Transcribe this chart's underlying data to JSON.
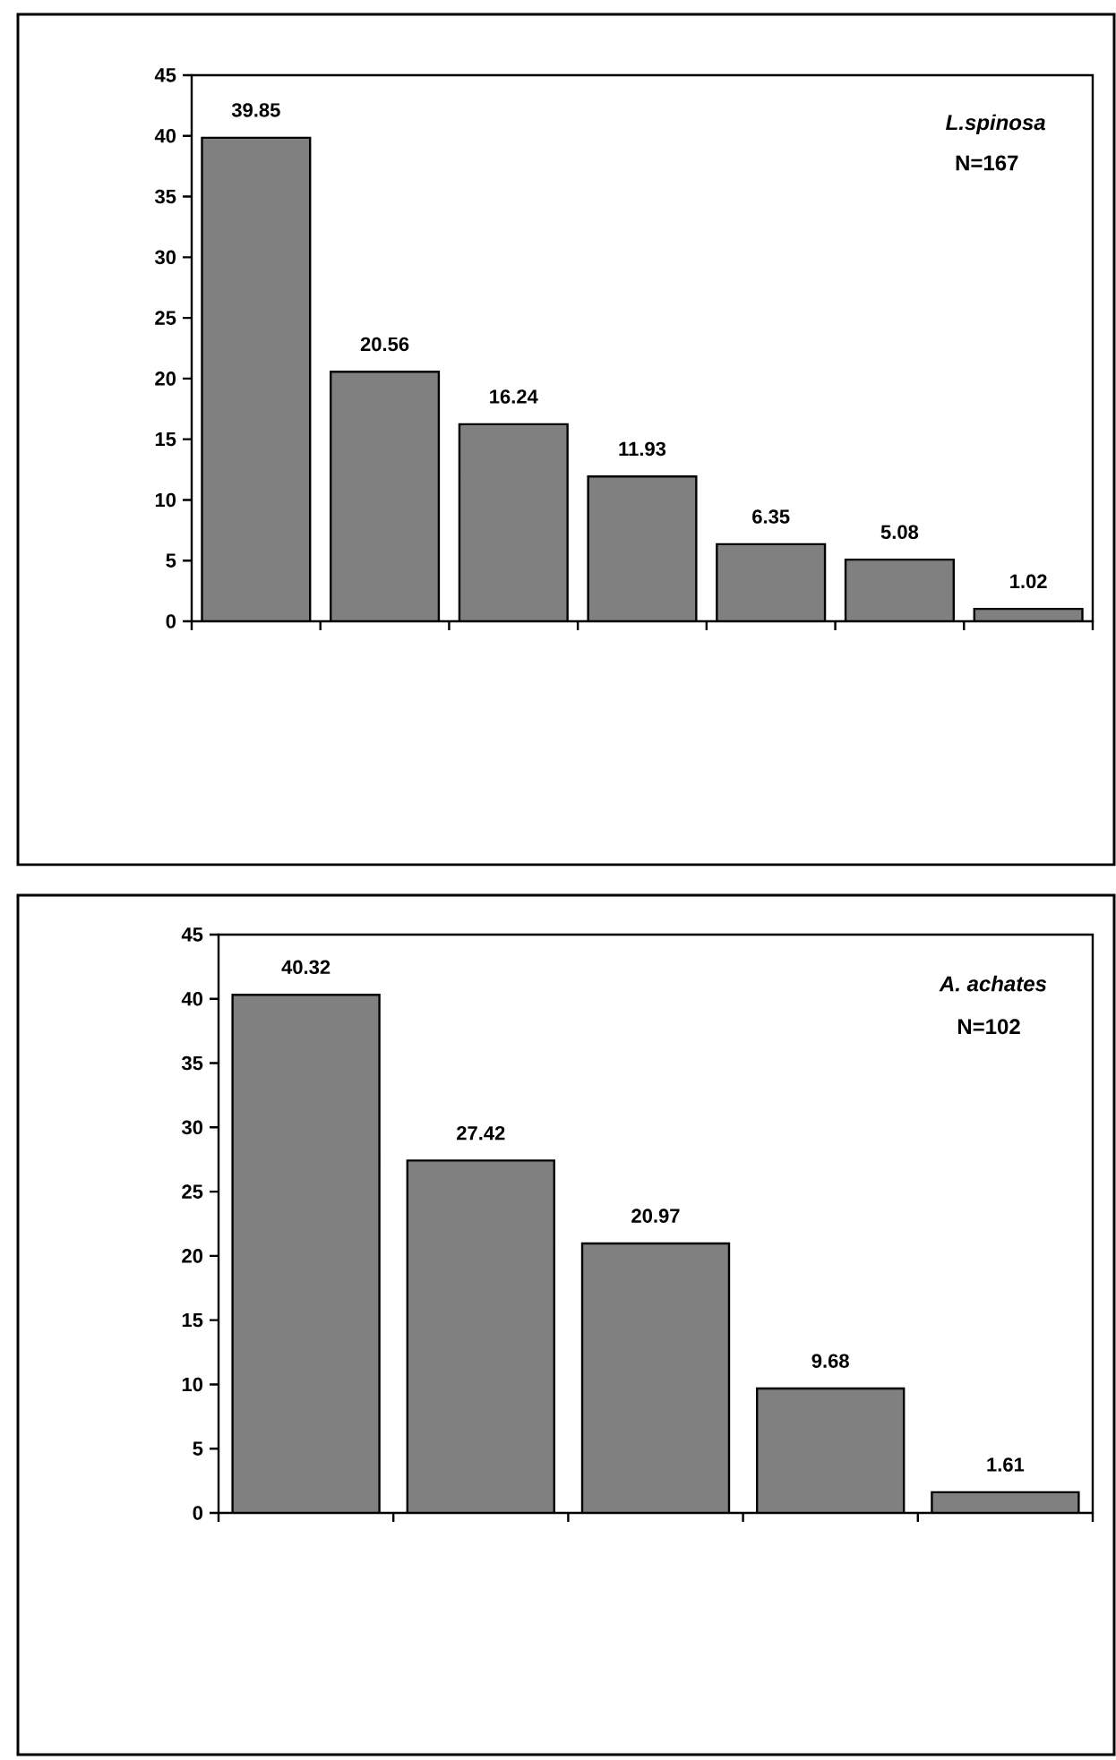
{
  "chart_data": [
    {
      "type": "bar",
      "categories": [
        null,
        null,
        null,
        null,
        null,
        null,
        null
      ],
      "values": [
        39.85,
        20.56,
        16.24,
        11.93,
        6.35,
        5.08,
        1.02
      ],
      "color": "#808080",
      "ylim": [
        0,
        45
      ],
      "yticks": [
        0,
        5,
        10,
        15,
        20,
        25,
        30,
        35,
        40,
        45
      ],
      "data_labels": true,
      "tick_labels": "y",
      "annotations": [
        "L.spinosa",
        "N=167"
      ]
    },
    {
      "type": "bar",
      "categories": [
        null,
        null,
        null,
        null,
        null
      ],
      "values": [
        40.32,
        27.42,
        20.97,
        9.68,
        1.61
      ],
      "color": "#808080",
      "ylim": [
        0,
        45
      ],
      "yticks": [
        0,
        5,
        10,
        15,
        20,
        25,
        30,
        35,
        40,
        45
      ],
      "data_labels": true,
      "tick_labels": "y",
      "annotations": [
        "A. achates",
        "N=102"
      ]
    }
  ]
}
